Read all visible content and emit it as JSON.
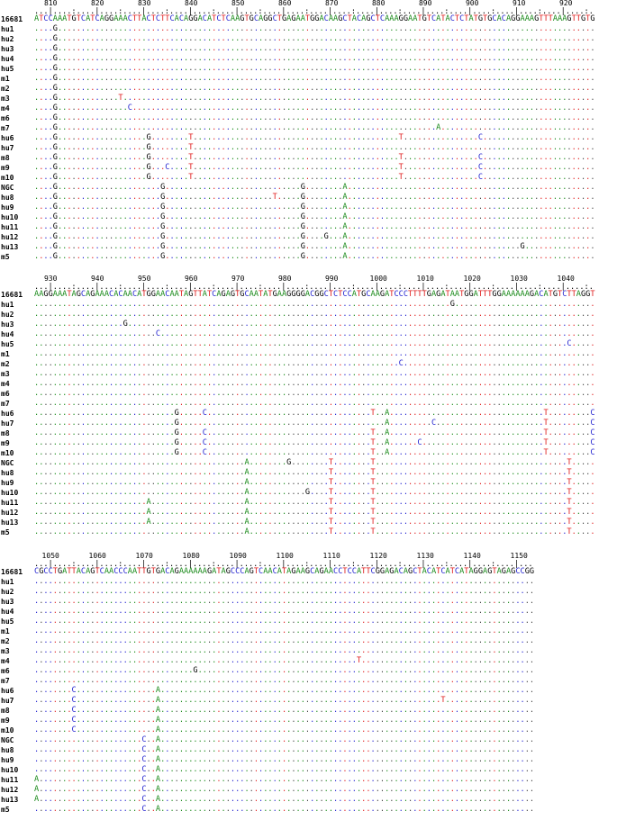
{
  "reference": "16681",
  "rows": [
    "hu1",
    "hu2",
    "hu3",
    "hu4",
    "hu5",
    "m1",
    "m2",
    "m3",
    "m4",
    "m6",
    "m7",
    "hu6",
    "hu7",
    "m8",
    "m9",
    "m10",
    "NGC",
    "hu8",
    "hu9",
    "hu10",
    "hu11",
    "hu12",
    "hu13",
    "m5"
  ],
  "blocks": [
    {
      "start": 807,
      "ticks": [
        "810",
        "820",
        "830",
        "840",
        "850",
        "860",
        "870",
        "880",
        "890",
        "900",
        "910",
        "920"
      ],
      "ref_seq": "ATCCAAATGTCATCAGGAAACTTACTCTTCACAGGACATCTCAAGTGCAGGCTGAGAATGGACAAGCTACAGCTCAAAGGAATGTCATACTCTATGTGCACAGGAAAGTTTAAAGTTGTG",
      "muts": {
        "hu1": {
          "4": "G"
        },
        "hu2": {
          "4": "G"
        },
        "hu3": {
          "4": "G"
        },
        "hu4": {
          "4": "G"
        },
        "hu5": {
          "4": "G"
        },
        "m1": {
          "4": "G"
        },
        "m2": {
          "4": "G"
        },
        "m3": {
          "4": "G",
          "18": "T"
        },
        "m4": {
          "4": "G",
          "20": "C"
        },
        "m6": {
          "4": "G"
        },
        "m7": {
          "4": "G",
          "86": "A"
        },
        "hu6": {
          "4": "G",
          "24": "G",
          "33": "T",
          "78": "T",
          "95": "C"
        },
        "hu7": {
          "4": "G",
          "24": "G",
          "33": "T"
        },
        "m8": {
          "4": "G",
          "24": "G",
          "33": "T",
          "78": "T",
          "95": "C"
        },
        "m9": {
          "4": "G",
          "24": "G",
          "28": "C",
          "33": "T",
          "78": "T",
          "95": "C"
        },
        "m10": {
          "4": "G",
          "24": "G",
          "33": "T",
          "78": "T",
          "95": "C"
        },
        "NGC": {
          "4": "G",
          "27": "G",
          "57": "G",
          "66": "A"
        },
        "hu8": {
          "4": "G",
          "27": "G",
          "51": "T",
          "57": "G",
          "66": "A"
        },
        "hu9": {
          "4": "G",
          "27": "G",
          "57": "G",
          "66": "A"
        },
        "hu10": {
          "4": "G",
          "27": "G",
          "57": "G",
          "66": "A"
        },
        "hu11": {
          "4": "G",
          "27": "G",
          "57": "G",
          "66": "A"
        },
        "hu12": {
          "4": "G",
          "27": "G",
          "57": "G",
          "62": "G",
          "66": "A"
        },
        "hu13": {
          "4": "G",
          "27": "G",
          "57": "G",
          "66": "A",
          "104": "G"
        },
        "m5": {
          "4": "G",
          "27": "G",
          "57": "G",
          "66": "A"
        }
      }
    },
    {
      "start": 927,
      "ticks": [
        "930",
        "940",
        "950",
        "960",
        "970",
        "980",
        "990",
        "1000",
        "1010",
        "1020",
        "1030",
        "1040"
      ],
      "ref_seq": "AAGGAAATAGCAGAAACACAACATGGAACAATAGTTATCAGAGTGCAATATGAAGGGGACGGCTCTCCATGCAAGATCCCTTTTGAGATAATGGATTTGGAAAAAAGACATGTCTTAGGT",
      "muts": {
        "hu1": {
          "89": "G"
        },
        "hu3": {
          "19": "G"
        },
        "hu4": {
          "26": "C"
        },
        "hu5": {
          "114": "C"
        },
        "m2": {
          "78": "C"
        },
        "hu6": {
          "30": "G",
          "36": "C",
          "72": "T",
          "75": "A",
          "109": "T",
          "119": "C"
        },
        "hu7": {
          "30": "G",
          "75": "A",
          "85": "C",
          "109": "T",
          "119": "C"
        },
        "m8": {
          "30": "G",
          "36": "C",
          "72": "T",
          "75": "A",
          "109": "T",
          "119": "C"
        },
        "m9": {
          "30": "G",
          "36": "C",
          "72": "T",
          "75": "A",
          "82": "C",
          "109": "T",
          "119": "C"
        },
        "m10": {
          "30": "G",
          "36": "C",
          "72": "T",
          "75": "A",
          "109": "T",
          "119": "C"
        },
        "NGC": {
          "45": "A",
          "54": "G",
          "63": "T",
          "72": "T",
          "114": "T"
        },
        "hu8": {
          "45": "A",
          "63": "T",
          "72": "T",
          "114": "T"
        },
        "hu9": {
          "45": "A",
          "63": "T",
          "72": "T",
          "114": "T"
        },
        "hu10": {
          "45": "A",
          "58": "G",
          "63": "T",
          "72": "T",
          "114": "T"
        },
        "hu11": {
          "24": "A",
          "45": "A",
          "63": "T",
          "72": "T",
          "114": "T"
        },
        "hu12": {
          "24": "A",
          "45": "A",
          "63": "T",
          "72": "T",
          "114": "T"
        },
        "hu13": {
          "24": "A",
          "45": "A",
          "63": "T",
          "72": "T",
          "114": "T"
        },
        "m5": {
          "45": "A",
          "63": "T",
          "72": "T",
          "114": "T"
        }
      }
    },
    {
      "start": 1047,
      "ticks": [
        "1050",
        "1060",
        "1070",
        "1080",
        "1090",
        "1100",
        "1110",
        "1120",
        "1130",
        "1140",
        "1150"
      ],
      "ref_seq": "CGCCTGATTACAGTCAACCCAATTGTGACAGAAAAAAGATAGCCCAGTCAACATAGAAGCAGAACCTCCATTCGGAGACAGCTACATCATCATAGGAGTAGAGCCGG",
      "muts": {
        "m4": {
          "69": "T"
        },
        "m6": {
          "34": "G"
        },
        "hu6": {
          "8": "C",
          "26": "A"
        },
        "hu7": {
          "8": "C",
          "26": "A",
          "87": "T"
        },
        "m8": {
          "8": "C",
          "26": "A"
        },
        "m9": {
          "8": "C",
          "26": "A"
        },
        "m10": {
          "8": "C",
          "26": "A"
        },
        "NGC": {
          "23": "C",
          "26": "A"
        },
        "hu8": {
          "23": "C",
          "26": "A"
        },
        "hu9": {
          "23": "C",
          "26": "A"
        },
        "hu10": {
          "23": "C",
          "26": "A"
        },
        "hu11": {
          "0": "A",
          "23": "C",
          "26": "A"
        },
        "hu12": {
          "0": "A",
          "23": "C",
          "26": "A"
        },
        "hu13": {
          "0": "A",
          "23": "C",
          "26": "A"
        },
        "m5": {
          "23": "C",
          "26": "A"
        }
      }
    }
  ],
  "colors": {
    "A": "#1a8a1a",
    "C": "#2323d0",
    "G": "#000000",
    "T": "#e02020"
  }
}
